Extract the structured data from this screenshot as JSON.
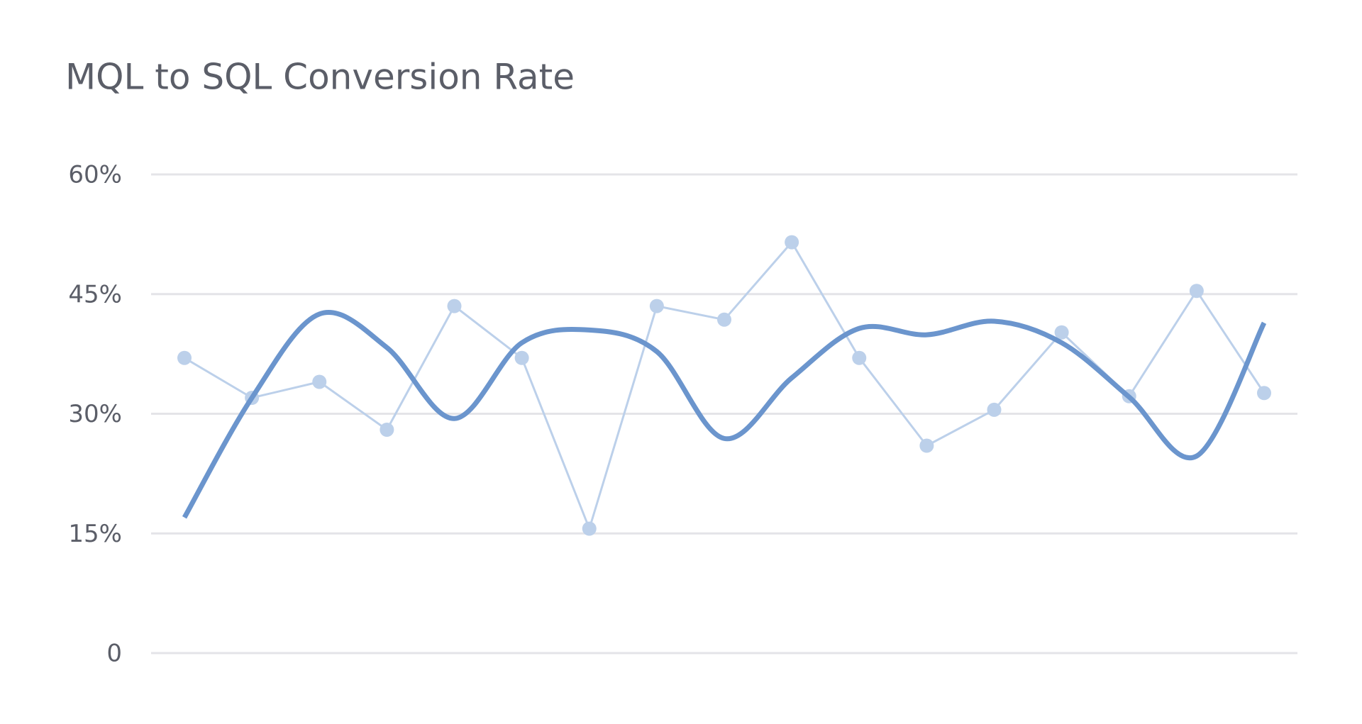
{
  "chart_data": {
    "type": "line",
    "title": "MQL to SQL Conversion Rate",
    "categories": [
      null,
      null,
      null,
      null,
      null,
      null,
      null,
      null,
      null,
      null,
      null,
      null,
      null,
      null,
      null,
      null,
      null
    ],
    "series": [
      {
        "color": "#bcd0ea",
        "markers": true,
        "smooth": false,
        "values": [
          37,
          32,
          34,
          28,
          43.5,
          37,
          15.6,
          43.5,
          41.8,
          51.5,
          37,
          26,
          30.5,
          40.2,
          32.2,
          45.4,
          32.6
        ]
      },
      {
        "color": "#6b95cd",
        "markers": false,
        "smooth": true,
        "values": [
          17,
          32,
          42.5,
          38.3,
          29.4,
          38.9,
          40.5,
          37.8,
          26.9,
          34.5,
          40.7,
          39.9,
          41.6,
          38.9,
          32.1,
          24.7,
          41.4
        ]
      }
    ],
    "ylim": [
      0,
      60
    ],
    "yticks": [
      0,
      {
        "value": 15,
        "label": "15%"
      },
      {
        "value": 30,
        "label": "30%"
      },
      {
        "value": 45,
        "label": "45%"
      },
      {
        "value": 60,
        "label": "60%"
      }
    ],
    "grid": true
  }
}
